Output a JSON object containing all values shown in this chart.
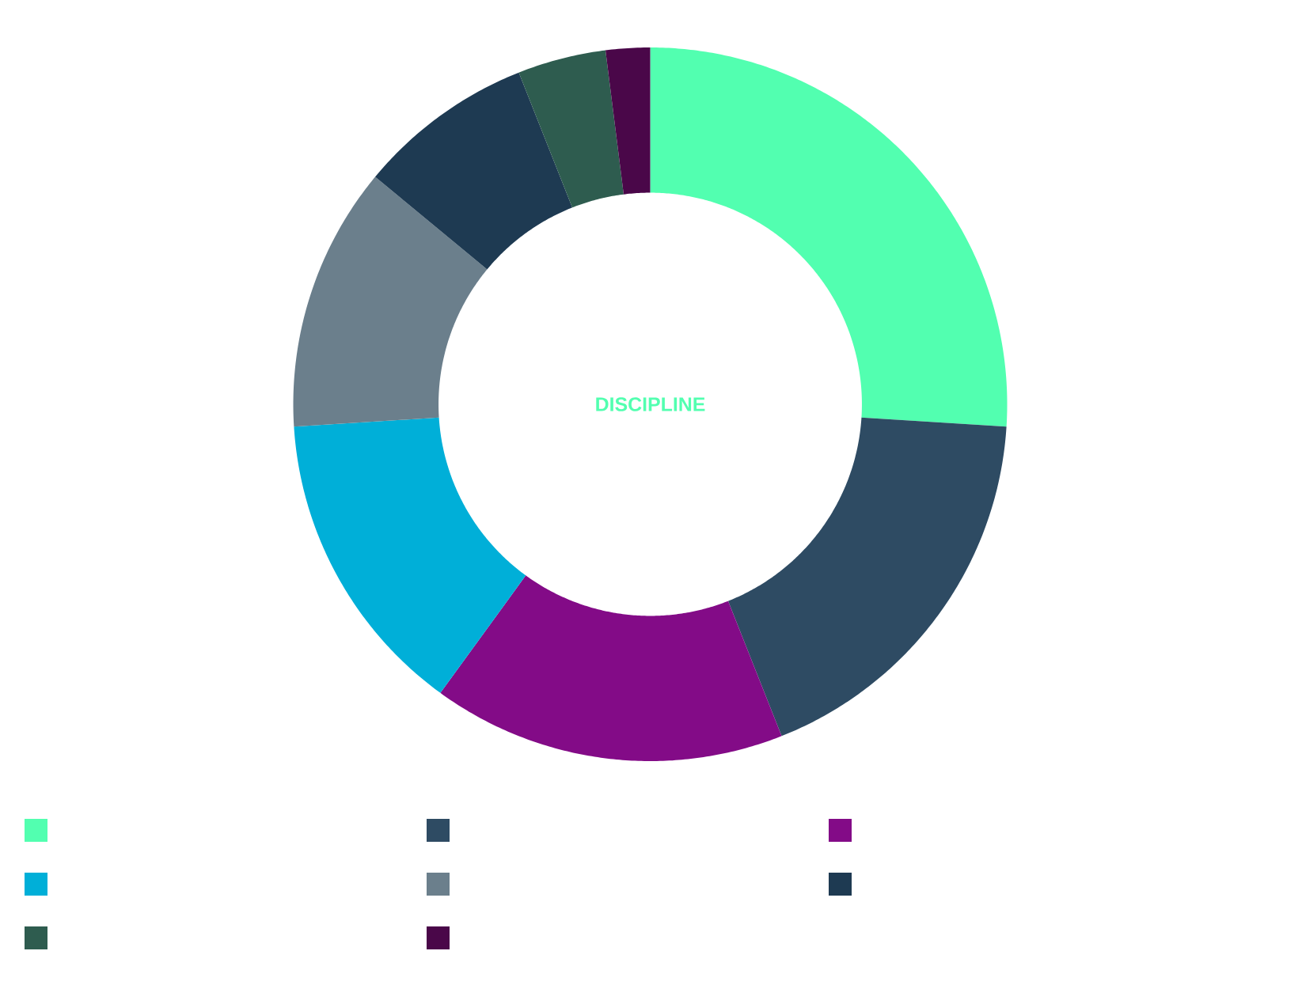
{
  "chart_data": {
    "type": "donut",
    "title": "DISCIPLINE",
    "categories": [
      null,
      null,
      null,
      null,
      null,
      null,
      null,
      null
    ],
    "values": [
      26,
      18,
      16,
      14,
      12,
      8,
      4,
      2
    ],
    "colors": [
      "#52ffb0",
      "#2e4b63",
      "#830b87",
      "#00afd8",
      "#6b7f8c",
      "#1e3a52",
      "#2e5c4f",
      "#4a0749"
    ]
  }
}
